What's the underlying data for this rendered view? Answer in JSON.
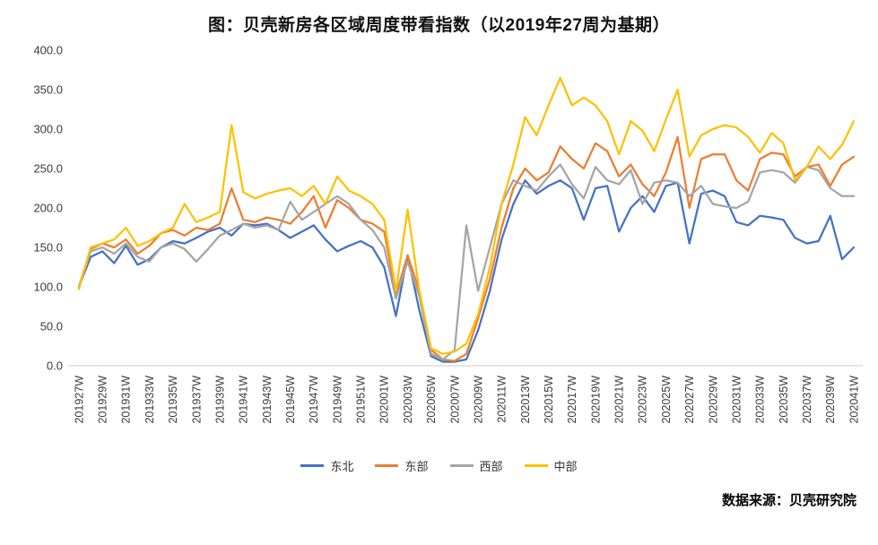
{
  "chart_data": {
    "type": "line",
    "title": "图：贝壳新房各区域周度带看指数（以2019年27周为基期）",
    "xlabel": "",
    "ylabel": "",
    "ylim": [
      0,
      400
    ],
    "yticks": [
      0,
      50,
      100,
      150,
      200,
      250,
      300,
      350,
      400
    ],
    "ytick_format": "one_decimal",
    "grid": false,
    "legend_position": "bottom",
    "x_label_every": 2,
    "x": [
      "201927W",
      "201928W",
      "201929W",
      "201930W",
      "201931W",
      "201932W",
      "201933W",
      "201934W",
      "201935W",
      "201936W",
      "201937W",
      "201938W",
      "201939W",
      "201940W",
      "201941W",
      "201942W",
      "201943W",
      "201944W",
      "201945W",
      "201946W",
      "201947W",
      "201948W",
      "201949W",
      "201950W",
      "201951W",
      "201952W",
      "202001W",
      "202002W",
      "202003W",
      "202004W",
      "202005W",
      "202006W",
      "202007W",
      "202008W",
      "202009W",
      "202010W",
      "202011W",
      "202012W",
      "202013W",
      "202014W",
      "202015W",
      "202016W",
      "202017W",
      "202018W",
      "202019W",
      "202020W",
      "202021W",
      "202022W",
      "202023W",
      "202024W",
      "202025W",
      "202026W",
      "202027W",
      "202028W",
      "202029W",
      "202030W",
      "202031W",
      "202032W",
      "202033W",
      "202034W",
      "202035W",
      "202036W",
      "202037W",
      "202038W",
      "202039W",
      "202040W",
      "202041W"
    ],
    "series": [
      {
        "name": "东北",
        "key": "northeast",
        "color": "#4472C4",
        "values": [
          100,
          138,
          145,
          130,
          152,
          128,
          135,
          150,
          158,
          155,
          162,
          170,
          175,
          165,
          180,
          178,
          180,
          172,
          162,
          170,
          178,
          160,
          145,
          152,
          158,
          150,
          125,
          63,
          140,
          70,
          12,
          5,
          5,
          8,
          45,
          95,
          160,
          205,
          235,
          218,
          228,
          235,
          225,
          185,
          225,
          228,
          170,
          200,
          215,
          195,
          228,
          232,
          155,
          218,
          222,
          215,
          182,
          178,
          190,
          188,
          185,
          162,
          155,
          158,
          190,
          135,
          150
        ]
      },
      {
        "name": "东部",
        "key": "east",
        "color": "#ED7D31",
        "values": [
          100,
          148,
          155,
          150,
          160,
          142,
          152,
          168,
          172,
          165,
          175,
          172,
          180,
          225,
          185,
          182,
          188,
          185,
          180,
          195,
          215,
          175,
          210,
          200,
          185,
          180,
          170,
          90,
          140,
          95,
          20,
          8,
          6,
          15,
          60,
          110,
          175,
          225,
          250,
          235,
          245,
          278,
          262,
          250,
          282,
          272,
          240,
          255,
          230,
          215,
          245,
          290,
          200,
          262,
          268,
          268,
          235,
          222,
          262,
          270,
          268,
          240,
          252,
          255,
          228,
          255,
          265
        ]
      },
      {
        "name": "西部",
        "key": "west",
        "color": "#A5A5A5",
        "values": [
          100,
          145,
          150,
          142,
          155,
          138,
          132,
          150,
          155,
          148,
          132,
          148,
          165,
          172,
          180,
          175,
          178,
          172,
          208,
          185,
          195,
          205,
          215,
          205,
          185,
          172,
          150,
          85,
          132,
          88,
          15,
          8,
          20,
          178,
          95,
          150,
          205,
          235,
          228,
          222,
          240,
          255,
          230,
          212,
          252,
          235,
          230,
          248,
          205,
          232,
          235,
          232,
          215,
          228,
          205,
          202,
          200,
          208,
          245,
          248,
          245,
          232,
          252,
          248,
          225,
          215,
          215
        ]
      },
      {
        "name": "中部",
        "key": "central",
        "color": "#FFC000",
        "values": [
          97,
          150,
          155,
          160,
          175,
          152,
          158,
          168,
          175,
          205,
          182,
          188,
          195,
          305,
          220,
          212,
          218,
          222,
          225,
          215,
          228,
          205,
          240,
          222,
          215,
          205,
          185,
          95,
          198,
          95,
          22,
          15,
          18,
          28,
          65,
          125,
          205,
          255,
          315,
          292,
          330,
          365,
          330,
          340,
          330,
          310,
          268,
          310,
          298,
          272,
          312,
          350,
          265,
          292,
          300,
          305,
          302,
          290,
          270,
          295,
          282,
          235,
          252,
          278,
          262,
          280,
          310
        ]
      }
    ]
  },
  "footer": {
    "source": "数据来源：贝壳研究院"
  }
}
